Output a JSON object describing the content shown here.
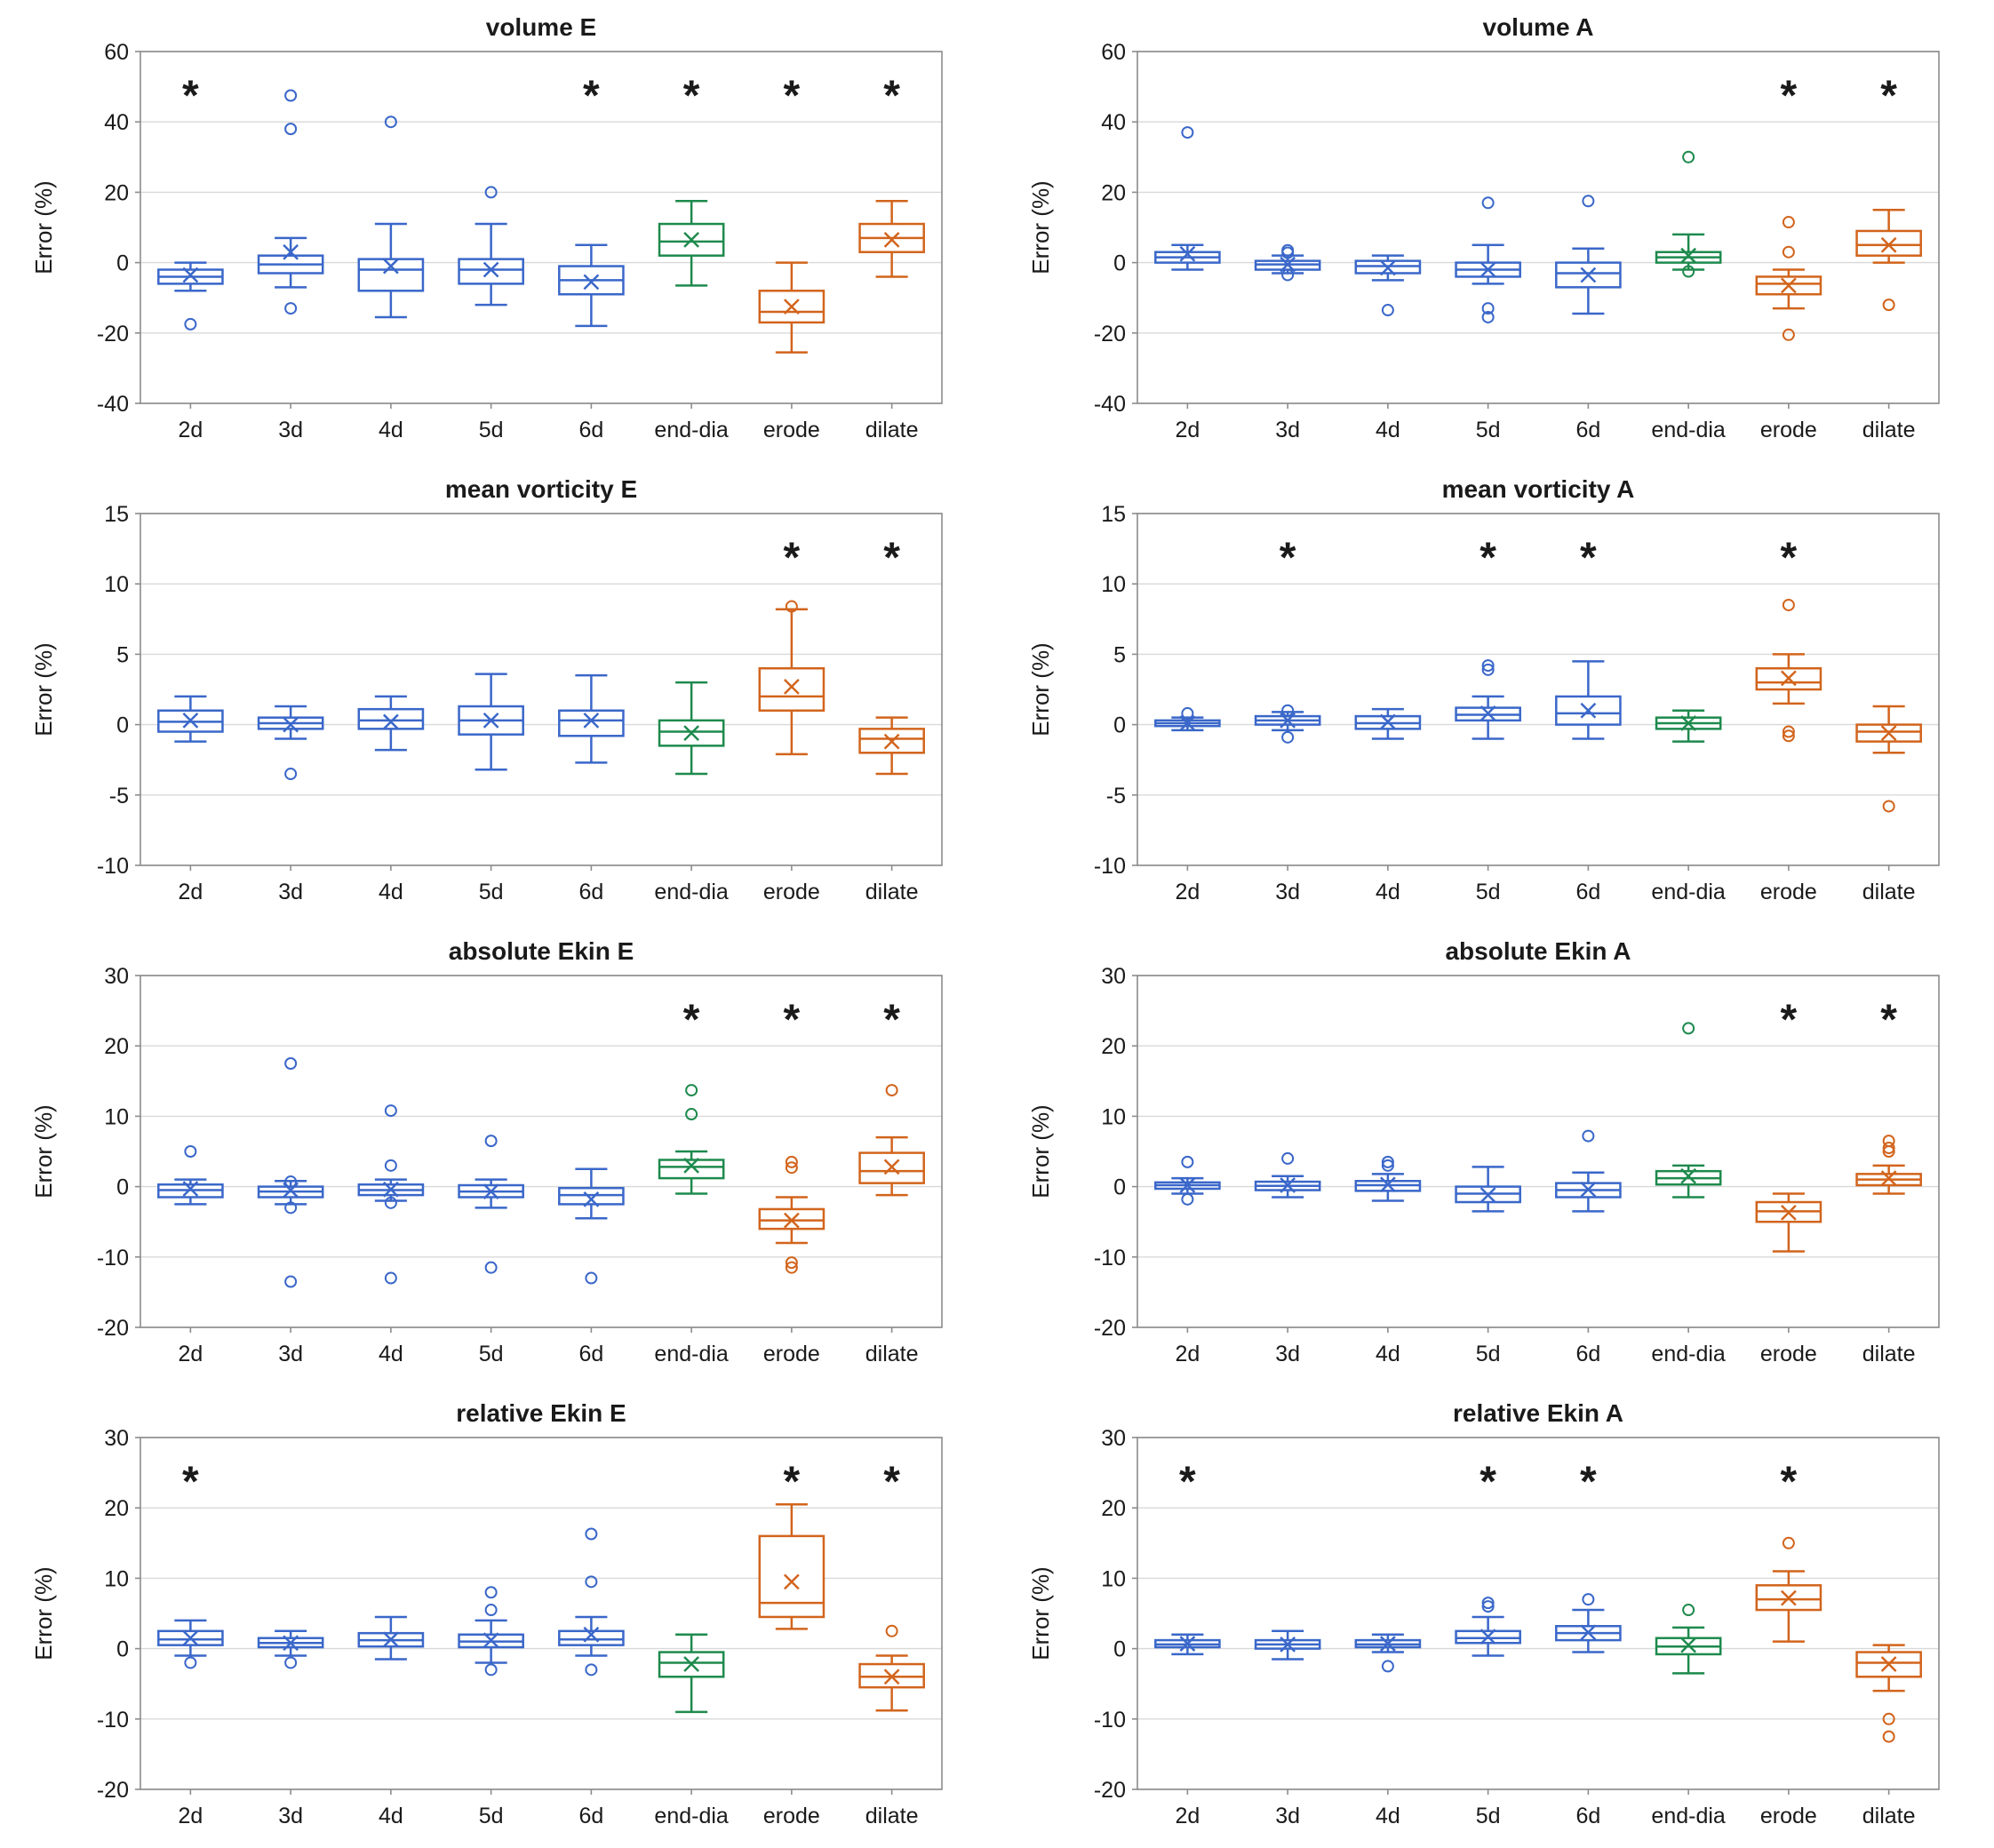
{
  "page": {
    "background": "#ffffff"
  },
  "colors": {
    "blue": "#3a67c9",
    "green": "#1e8a4d",
    "orange": "#d2641c"
  },
  "category_colors": [
    "blue",
    "blue",
    "blue",
    "blue",
    "blue",
    "green",
    "orange",
    "orange"
  ],
  "categories": [
    "2d",
    "3d",
    "4d",
    "5d",
    "6d",
    "end-dia",
    "erode",
    "dilate"
  ],
  "chart_data": [
    {
      "type": "boxplot",
      "title": "volume E",
      "xlabel": "",
      "ylabel": "Error (%)",
      "ylim": [
        -40,
        60
      ],
      "yticks": [
        -40,
        -20,
        0,
        20,
        40,
        60
      ],
      "star_y": 50,
      "stars": [
        "2d",
        "6d",
        "end-dia",
        "erode",
        "dilate"
      ],
      "boxes": [
        {
          "label": "2d",
          "low": -8,
          "q1": -6,
          "med": -4,
          "q3": -2,
          "high": 0,
          "mean": -3.5,
          "outliers": [
            -17.5
          ]
        },
        {
          "label": "3d",
          "low": -7,
          "q1": -3,
          "med": -0.5,
          "q3": 2,
          "high": 7,
          "mean": 3,
          "outliers": [
            47.5,
            38,
            -13
          ]
        },
        {
          "label": "4d",
          "low": -15.5,
          "q1": -8,
          "med": -2,
          "q3": 1,
          "high": 11,
          "mean": -1,
          "outliers": [
            40
          ]
        },
        {
          "label": "5d",
          "low": -12,
          "q1": -6,
          "med": -2,
          "q3": 1,
          "high": 11,
          "mean": -2,
          "outliers": [
            20
          ]
        },
        {
          "label": "6d",
          "low": -18,
          "q1": -9,
          "med": -5,
          "q3": -1,
          "high": 5,
          "mean": -5.5,
          "outliers": []
        },
        {
          "label": "end-dia",
          "low": -6.5,
          "q1": 2,
          "med": 6,
          "q3": 11,
          "high": 17.5,
          "mean": 6.5,
          "outliers": []
        },
        {
          "label": "erode",
          "low": -25.5,
          "q1": -17,
          "med": -14,
          "q3": -8,
          "high": 0,
          "mean": -12.5,
          "outliers": []
        },
        {
          "label": "dilate",
          "low": -4,
          "q1": 3,
          "med": 7,
          "q3": 11,
          "high": 17.5,
          "mean": 6.5,
          "outliers": []
        }
      ]
    },
    {
      "type": "boxplot",
      "title": "volume A",
      "xlabel": "",
      "ylabel": "Error (%)",
      "ylim": [
        -40,
        60
      ],
      "yticks": [
        -40,
        -20,
        0,
        20,
        40,
        60
      ],
      "star_y": 50,
      "stars": [
        "erode",
        "dilate"
      ],
      "boxes": [
        {
          "label": "2d",
          "low": -2,
          "q1": 0,
          "med": 1.5,
          "q3": 3,
          "high": 5,
          "mean": 2.5,
          "outliers": [
            37
          ]
        },
        {
          "label": "3d",
          "low": -3,
          "q1": -2,
          "med": -0.5,
          "q3": 0.5,
          "high": 2,
          "mean": -0.5,
          "outliers": [
            3.5,
            2.8,
            -3.5
          ]
        },
        {
          "label": "4d",
          "low": -5,
          "q1": -3,
          "med": -1,
          "q3": 0.5,
          "high": 2,
          "mean": -1.5,
          "outliers": [
            -13.5
          ]
        },
        {
          "label": "5d",
          "low": -6,
          "q1": -4,
          "med": -2,
          "q3": 0,
          "high": 5,
          "mean": -2,
          "outliers": [
            17,
            -13,
            -15.5
          ]
        },
        {
          "label": "6d",
          "low": -14.5,
          "q1": -7,
          "med": -3,
          "q3": 0,
          "high": 4,
          "mean": -3.5,
          "outliers": [
            17.5
          ]
        },
        {
          "label": "end-dia",
          "low": -2,
          "q1": 0,
          "med": 1.5,
          "q3": 3,
          "high": 8,
          "mean": 2,
          "outliers": [
            30,
            -2.5
          ]
        },
        {
          "label": "erode",
          "low": -13,
          "q1": -9,
          "med": -6,
          "q3": -4,
          "high": -2,
          "mean": -6.5,
          "outliers": [
            11.5,
            3,
            -20.5
          ]
        },
        {
          "label": "dilate",
          "low": 0,
          "q1": 2,
          "med": 5,
          "q3": 9,
          "high": 15,
          "mean": 5,
          "outliers": [
            -12
          ]
        }
      ]
    },
    {
      "type": "boxplot",
      "title": "mean vorticity E",
      "xlabel": "",
      "ylabel": "Error (%)",
      "ylim": [
        -10,
        15
      ],
      "yticks": [
        -10,
        -5,
        0,
        5,
        10,
        15
      ],
      "star_y": 12.5,
      "stars": [
        "erode",
        "dilate"
      ],
      "boxes": [
        {
          "label": "2d",
          "low": -1.2,
          "q1": -0.5,
          "med": 0.2,
          "q3": 1,
          "high": 2,
          "mean": 0.3,
          "outliers": []
        },
        {
          "label": "3d",
          "low": -1,
          "q1": -0.3,
          "med": 0.1,
          "q3": 0.5,
          "high": 1.3,
          "mean": 0,
          "outliers": [
            -3.5
          ]
        },
        {
          "label": "4d",
          "low": -1.8,
          "q1": -0.3,
          "med": 0.3,
          "q3": 1.1,
          "high": 2,
          "mean": 0.2,
          "outliers": []
        },
        {
          "label": "5d",
          "low": -3.2,
          "q1": -0.7,
          "med": 0.3,
          "q3": 1.3,
          "high": 3.6,
          "mean": 0.3,
          "outliers": []
        },
        {
          "label": "6d",
          "low": -2.7,
          "q1": -0.8,
          "med": 0.3,
          "q3": 1,
          "high": 3.5,
          "mean": 0.3,
          "outliers": []
        },
        {
          "label": "end-dia",
          "low": -3.5,
          "q1": -1.5,
          "med": -0.5,
          "q3": 0.3,
          "high": 3,
          "mean": -0.6,
          "outliers": []
        },
        {
          "label": "erode",
          "low": -2.1,
          "q1": 1,
          "med": 2,
          "q3": 4,
          "high": 8.2,
          "mean": 2.7,
          "outliers": [
            8.4
          ]
        },
        {
          "label": "dilate",
          "low": -3.5,
          "q1": -2,
          "med": -1,
          "q3": -0.3,
          "high": 0.5,
          "mean": -1.2,
          "outliers": []
        }
      ]
    },
    {
      "type": "boxplot",
      "title": "mean vorticity A",
      "xlabel": "",
      "ylabel": "Error (%)",
      "ylim": [
        -10,
        15
      ],
      "yticks": [
        -10,
        -5,
        0,
        5,
        10,
        15
      ],
      "star_y": 12.5,
      "stars": [
        "3d",
        "5d",
        "6d",
        "erode"
      ],
      "boxes": [
        {
          "label": "2d",
          "low": -0.4,
          "q1": -0.1,
          "med": 0.1,
          "q3": 0.3,
          "high": 0.5,
          "mean": 0.1,
          "outliers": [
            0.8
          ]
        },
        {
          "label": "3d",
          "low": -0.4,
          "q1": 0,
          "med": 0.3,
          "q3": 0.6,
          "high": 0.9,
          "mean": 0.3,
          "outliers": [
            1,
            -0.9
          ]
        },
        {
          "label": "4d",
          "low": -1,
          "q1": -0.3,
          "med": 0.1,
          "q3": 0.6,
          "high": 1.1,
          "mean": 0.2,
          "outliers": []
        },
        {
          "label": "5d",
          "low": -1,
          "q1": 0.3,
          "med": 0.7,
          "q3": 1.2,
          "high": 2,
          "mean": 0.8,
          "outliers": [
            4.2,
            3.9
          ]
        },
        {
          "label": "6d",
          "low": -1,
          "q1": 0,
          "med": 0.8,
          "q3": 2,
          "high": 4.5,
          "mean": 1,
          "outliers": []
        },
        {
          "label": "end-dia",
          "low": -1.2,
          "q1": -0.3,
          "med": 0.1,
          "q3": 0.5,
          "high": 1,
          "mean": 0.1,
          "outliers": []
        },
        {
          "label": "erode",
          "low": 1.5,
          "q1": 2.5,
          "med": 3,
          "q3": 4,
          "high": 5,
          "mean": 3.3,
          "outliers": [
            8.5,
            -0.5,
            -0.8
          ]
        },
        {
          "label": "dilate",
          "low": -2,
          "q1": -1.2,
          "med": -0.5,
          "q3": 0,
          "high": 1.3,
          "mean": -0.6,
          "outliers": [
            -5.8
          ]
        }
      ]
    },
    {
      "type": "boxplot",
      "title": "absolute Ekin E",
      "xlabel": "",
      "ylabel": "Error (%)",
      "ylim": [
        -20,
        30
      ],
      "yticks": [
        -20,
        -10,
        0,
        10,
        20,
        30
      ],
      "star_y": 25,
      "stars": [
        "end-dia",
        "erode",
        "dilate"
      ],
      "boxes": [
        {
          "label": "2d",
          "low": -2.5,
          "q1": -1.5,
          "med": -0.5,
          "q3": 0.3,
          "high": 1,
          "mean": -0.3,
          "outliers": [
            5
          ]
        },
        {
          "label": "3d",
          "low": -2.5,
          "q1": -1.5,
          "med": -0.7,
          "q3": 0,
          "high": 0.8,
          "mean": -0.5,
          "outliers": [
            17.5,
            0.7,
            -3,
            -13.5
          ]
        },
        {
          "label": "4d",
          "low": -2,
          "q1": -1.2,
          "med": -0.5,
          "q3": 0.3,
          "high": 1,
          "mean": -0.4,
          "outliers": [
            10.8,
            3,
            -2.3,
            -13
          ]
        },
        {
          "label": "5d",
          "low": -3,
          "q1": -1.5,
          "med": -0.7,
          "q3": 0.2,
          "high": 1,
          "mean": -0.7,
          "outliers": [
            6.5,
            -11.5
          ]
        },
        {
          "label": "6d",
          "low": -4.5,
          "q1": -2.5,
          "med": -1.2,
          "q3": -0.2,
          "high": 2.5,
          "mean": -1.8,
          "outliers": [
            -13
          ]
        },
        {
          "label": "end-dia",
          "low": -1,
          "q1": 1.2,
          "med": 2.8,
          "q3": 3.8,
          "high": 5,
          "mean": 3,
          "outliers": [
            13.7,
            10.3
          ]
        },
        {
          "label": "erode",
          "low": -8,
          "q1": -6,
          "med": -4.8,
          "q3": -3.2,
          "high": -1.5,
          "mean": -4.8,
          "outliers": [
            3.5,
            2.7,
            -10.8,
            -11.5
          ]
        },
        {
          "label": "dilate",
          "low": -1.2,
          "q1": 0.5,
          "med": 2.2,
          "q3": 4.8,
          "high": 7,
          "mean": 2.8,
          "outliers": [
            13.7
          ]
        }
      ]
    },
    {
      "type": "boxplot",
      "title": "absolute Ekin A",
      "xlabel": "",
      "ylabel": "Error (%)",
      "ylim": [
        -20,
        30
      ],
      "yticks": [
        -20,
        -10,
        0,
        10,
        20,
        30
      ],
      "star_y": 25,
      "stars": [
        "erode",
        "dilate"
      ],
      "boxes": [
        {
          "label": "2d",
          "low": -1,
          "q1": -0.3,
          "med": 0.2,
          "q3": 0.6,
          "high": 1.2,
          "mean": 0.2,
          "outliers": [
            3.5,
            -1.8
          ]
        },
        {
          "label": "3d",
          "low": -1.5,
          "q1": -0.5,
          "med": 0.1,
          "q3": 0.7,
          "high": 1.5,
          "mean": 0.2,
          "outliers": [
            4
          ]
        },
        {
          "label": "4d",
          "low": -2,
          "q1": -0.6,
          "med": 0.2,
          "q3": 0.8,
          "high": 1.8,
          "mean": 0.3,
          "outliers": [
            3.5,
            3
          ]
        },
        {
          "label": "5d",
          "low": -3.5,
          "q1": -2.2,
          "med": -1,
          "q3": 0,
          "high": 2.8,
          "mean": -1.2,
          "outliers": []
        },
        {
          "label": "6d",
          "low": -3.5,
          "q1": -1.5,
          "med": -0.5,
          "q3": 0.5,
          "high": 2,
          "mean": -0.4,
          "outliers": [
            7.2
          ]
        },
        {
          "label": "end-dia",
          "low": -1.5,
          "q1": 0.3,
          "med": 1.2,
          "q3": 2.2,
          "high": 3,
          "mean": 1.5,
          "outliers": [
            22.5
          ]
        },
        {
          "label": "erode",
          "low": -9.2,
          "q1": -5,
          "med": -3.5,
          "q3": -2.2,
          "high": -1,
          "mean": -3.7,
          "outliers": []
        },
        {
          "label": "dilate",
          "low": -1,
          "q1": 0.2,
          "med": 1,
          "q3": 1.8,
          "high": 3,
          "mean": 1.2,
          "outliers": [
            6.5,
            5.5,
            5
          ]
        }
      ]
    },
    {
      "type": "boxplot",
      "title": "relative Ekin E",
      "xlabel": "",
      "ylabel": "Error (%)",
      "ylim": [
        -20,
        30
      ],
      "yticks": [
        -20,
        -10,
        0,
        10,
        20,
        30
      ],
      "star_y": 25,
      "stars": [
        "2d",
        "erode",
        "dilate"
      ],
      "boxes": [
        {
          "label": "2d",
          "low": -1,
          "q1": 0.5,
          "med": 1.3,
          "q3": 2.5,
          "high": 4,
          "mean": 1.5,
          "outliers": [
            -2
          ]
        },
        {
          "label": "3d",
          "low": -1,
          "q1": 0.2,
          "med": 0.8,
          "q3": 1.5,
          "high": 2.5,
          "mean": 0.8,
          "outliers": [
            -2
          ]
        },
        {
          "label": "4d",
          "low": -1.5,
          "q1": 0.3,
          "med": 1.2,
          "q3": 2.2,
          "high": 4.5,
          "mean": 1.3,
          "outliers": []
        },
        {
          "label": "5d",
          "low": -2,
          "q1": 0.2,
          "med": 1,
          "q3": 2,
          "high": 4,
          "mean": 1.2,
          "outliers": [
            8,
            5.5,
            -3
          ]
        },
        {
          "label": "6d",
          "low": -1,
          "q1": 0.5,
          "med": 1.3,
          "q3": 2.5,
          "high": 4.5,
          "mean": 2,
          "outliers": [
            16.3,
            9.5,
            -3
          ]
        },
        {
          "label": "end-dia",
          "low": -9,
          "q1": -4,
          "med": -2,
          "q3": -0.5,
          "high": 2,
          "mean": -2.2,
          "outliers": []
        },
        {
          "label": "erode",
          "low": 2.8,
          "q1": 4.5,
          "med": 6.5,
          "q3": 16,
          "high": 20.5,
          "mean": 9.5,
          "outliers": []
        },
        {
          "label": "dilate",
          "low": -8.8,
          "q1": -5.5,
          "med": -4,
          "q3": -2.2,
          "high": -1,
          "mean": -4,
          "outliers": [
            2.5
          ]
        }
      ]
    },
    {
      "type": "boxplot",
      "title": "relative Ekin A",
      "xlabel": "",
      "ylabel": "Error (%)",
      "ylim": [
        -20,
        30
      ],
      "yticks": [
        -20,
        -10,
        0,
        10,
        20,
        30
      ],
      "star_y": 25,
      "stars": [
        "2d",
        "5d",
        "6d",
        "erode"
      ],
      "boxes": [
        {
          "label": "2d",
          "low": -0.8,
          "q1": 0.2,
          "med": 0.6,
          "q3": 1.2,
          "high": 2,
          "mean": 0.7,
          "outliers": []
        },
        {
          "label": "3d",
          "low": -1.5,
          "q1": 0,
          "med": 0.6,
          "q3": 1.2,
          "high": 2.5,
          "mean": 0.6,
          "outliers": []
        },
        {
          "label": "4d",
          "low": -0.5,
          "q1": 0.2,
          "med": 0.6,
          "q3": 1.2,
          "high": 2,
          "mean": 0.7,
          "outliers": [
            -2.5
          ]
        },
        {
          "label": "5d",
          "low": -1,
          "q1": 0.8,
          "med": 1.5,
          "q3": 2.5,
          "high": 4.5,
          "mean": 1.7,
          "outliers": [
            6.5,
            6
          ]
        },
        {
          "label": "6d",
          "low": -0.5,
          "q1": 1.2,
          "med": 2.2,
          "q3": 3.2,
          "high": 5.5,
          "mean": 2.3,
          "outliers": [
            7
          ]
        },
        {
          "label": "end-dia",
          "low": -3.5,
          "q1": -0.8,
          "med": 0.3,
          "q3": 1.5,
          "high": 3,
          "mean": 0.5,
          "outliers": [
            5.5
          ]
        },
        {
          "label": "erode",
          "low": 1,
          "q1": 5.5,
          "med": 7,
          "q3": 9,
          "high": 11,
          "mean": 7.2,
          "outliers": [
            15
          ]
        },
        {
          "label": "dilate",
          "low": -6,
          "q1": -4,
          "med": -2,
          "q3": -0.5,
          "high": 0.5,
          "mean": -2.2,
          "outliers": [
            -10,
            -12.5
          ]
        }
      ]
    }
  ]
}
